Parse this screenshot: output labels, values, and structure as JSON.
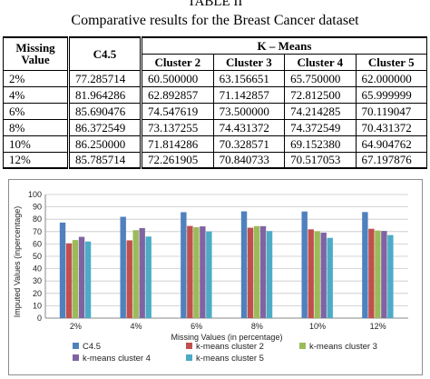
{
  "table": {
    "title": "TABLE II",
    "caption": "Comparative results for the Breast Cancer dataset",
    "header": {
      "missing": "Missing",
      "value": "Value",
      "c45": "C4.5",
      "kmeans": "K – Means",
      "cluster2": "Cluster  2",
      "cluster3": "Cluster 3",
      "cluster4": "Cluster 4",
      "cluster5": "Cluster 5"
    },
    "rows": [
      {
        "missing": "2%",
        "c45": "77.285714",
        "c2": "60.500000",
        "c3": "63.156651",
        "c4": "65.750000",
        "c5": "62.000000"
      },
      {
        "missing": "4%",
        "c45": "81.964286",
        "c2": "62.892857",
        "c3": "71.142857",
        "c4": "72.812500",
        "c5": "65.999999"
      },
      {
        "missing": "6%",
        "c45": "85.690476",
        "c2": "74.547619",
        "c3": "73.500000",
        "c4": "74.214285",
        "c5": "70.119047"
      },
      {
        "missing": "8%",
        "c45": "86.372549",
        "c2": "73.137255",
        "c3": "74.431372",
        "c4": "74.372549",
        "c5": "70.431372"
      },
      {
        "missing": "10%",
        "c45": "86.250000",
        "c2": "71.814286",
        "c3": "70.328571",
        "c4": "69.152380",
        "c5": "64.904762"
      },
      {
        "missing": "12%",
        "c45": "85.785714",
        "c2": "72.261905",
        "c3": "70.840733",
        "c4": "70.517053",
        "c5": "67.197876"
      }
    ]
  },
  "chart_data": {
    "type": "bar",
    "categories": [
      "2%",
      "4%",
      "6%",
      "8%",
      "10%",
      "12%"
    ],
    "xlabel": "Missing Values (in percentage)",
    "ylabel": "Imputed Values (inpercentage)",
    "ylim": [
      0,
      100
    ],
    "yticks": [
      "0",
      "10",
      "20",
      "30",
      "40",
      "50",
      "60",
      "70",
      "80",
      "90",
      "100"
    ],
    "grid": true,
    "legend_position": "bottom",
    "series": [
      {
        "name": "C4.5",
        "color": "#4F81BD",
        "values": [
          77.285714,
          81.964286,
          85.690476,
          86.372549,
          86.25,
          85.785714
        ]
      },
      {
        "name": "k-means cluster 2",
        "color": "#C0504D",
        "values": [
          60.5,
          62.892857,
          74.547619,
          73.137255,
          71.814286,
          72.261905
        ]
      },
      {
        "name": "k-means cluster 3",
        "color": "#9BBB59",
        "values": [
          63.156651,
          71.142857,
          73.5,
          74.431372,
          70.328571,
          70.840733
        ]
      },
      {
        "name": "k-means cluster 4",
        "color": "#8064A2",
        "values": [
          65.75,
          72.8125,
          74.214285,
          74.372549,
          69.15238,
          70.517053
        ]
      },
      {
        "name": "k-means cluster 5",
        "color": "#4BACC6",
        "values": [
          62.0,
          65.999999,
          70.119047,
          70.431372,
          64.904762,
          67.197876
        ]
      }
    ]
  }
}
